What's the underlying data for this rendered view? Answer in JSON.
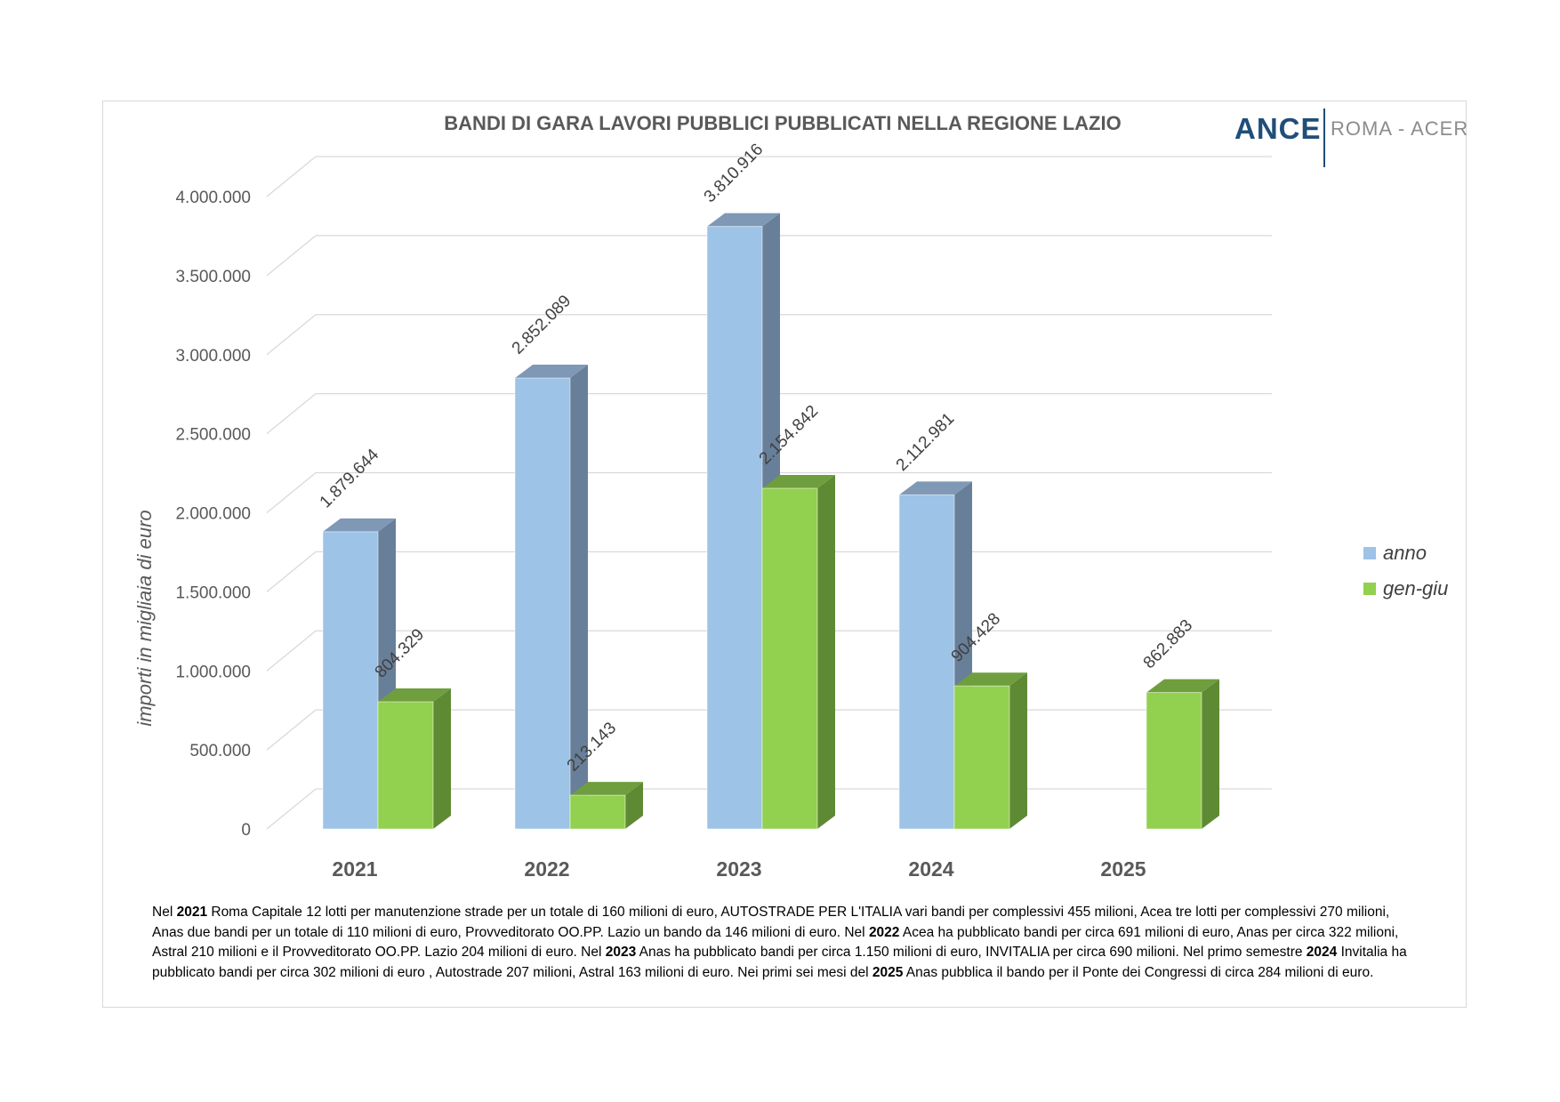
{
  "chart_data": {
    "type": "bar",
    "title": "BANDI DI GARA LAVORI PUBBLICI PUBBLICATI NELLA REGIONE LAZIO",
    "ylabel": "importi in migliaia di euro",
    "ylim": [
      0,
      4000000
    ],
    "y_ticks": [
      "0",
      "500.000",
      "1.000.000",
      "1.500.000",
      "2.000.000",
      "2.500.000",
      "3.000.000",
      "3.500.000",
      "4.000.000"
    ],
    "categories": [
      "2021",
      "2022",
      "2023",
      "2024",
      "2025"
    ],
    "series": [
      {
        "name": "anno",
        "values": [
          1879644,
          2852089,
          3810916,
          2112981,
          null
        ],
        "labels": [
          "1.879.644",
          "2.852.089",
          "3.810.916",
          "2.112.981",
          ""
        ]
      },
      {
        "name": "gen-giu",
        "values": [
          804329,
          213143,
          2154842,
          904428,
          862883
        ],
        "labels": [
          "804.329",
          "213.143",
          "2.154.842",
          "904.428",
          "862.883"
        ]
      }
    ],
    "legend_position": "right",
    "grid": true,
    "three_d": true,
    "colors": {
      "anno_front": "#9dc3e6",
      "anno_side": "#687f99",
      "anno_top": "#7e98b6",
      "gengiu_front": "#92d050",
      "gengiu_side": "#5f8a34",
      "gengiu_top": "#6f9e3e"
    }
  },
  "logo": {
    "brand": "ANCE",
    "subtitle": "ROMA - ACER"
  },
  "footnote": {
    "segments": [
      {
        "t": "Nel ",
        "b": false
      },
      {
        "t": "2021",
        "b": true
      },
      {
        "t": " Roma Capitale 12 lotti per manutenzione strade per un totale di 160 milioni di euro, AUTOSTRADE PER L'ITALIA vari bandi per complessivi 455 milioni, Acea tre lotti per complessivi  270 milioni, Anas due bandi per un totale di 110 milioni di euro, Provveditorato OO.PP. Lazio un bando da 146 milioni di euro. Nel ",
        "b": false
      },
      {
        "t": "2022",
        "b": true
      },
      {
        "t": " Acea ha pubblicato bandi per circa 691 milioni di euro, Anas per circa 322 milioni, Astral 210 milioni e il Provveditorato OO.PP. Lazio 204 milioni di euro. Nel ",
        "b": false
      },
      {
        "t": "2023",
        "b": true
      },
      {
        "t": " Anas ha pubblicato bandi per circa 1.150 milioni di euro, INVITALIA per circa 690 milioni. Nel primo semestre ",
        "b": false
      },
      {
        "t": "2024",
        "b": true
      },
      {
        "t": " Invitalia ha pubblicato bandi per circa 302 milioni di euro , Autostrade 207 milioni, Astral 163 milioni di euro. Nei primi sei mesi del ",
        "b": false
      },
      {
        "t": "2025",
        "b": true
      },
      {
        "t": " Anas pubblica il bando per il Ponte dei Congressi di circa 284 milioni di euro.",
        "b": false
      }
    ]
  }
}
